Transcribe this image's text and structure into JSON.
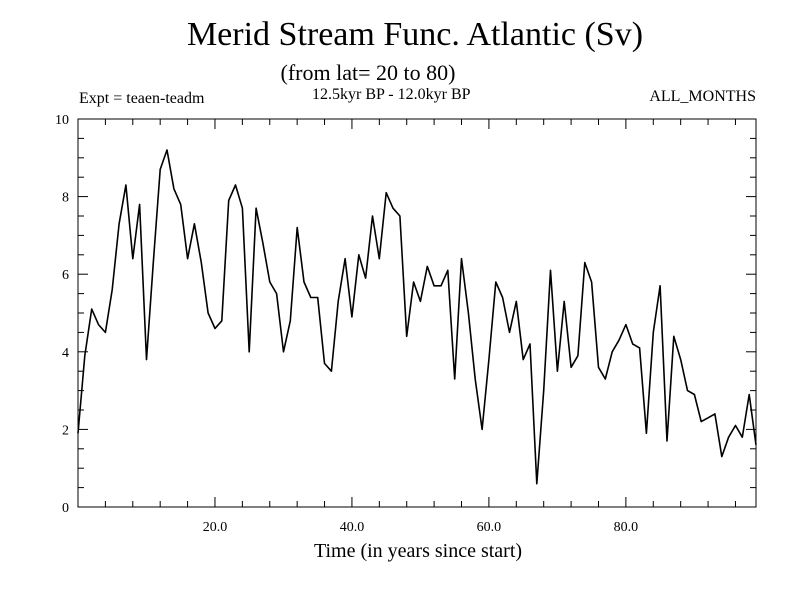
{
  "chart_data": {
    "type": "line",
    "title": "Merid Stream Func. Atlantic (Sv)",
    "subtitle": "(from lat= 20 to 80)",
    "experiment_label": "Expt = teaen-teadm",
    "period_label": "12.5kyr BP - 12.0kyr BP",
    "months_label": "ALL_MONTHS",
    "xlabel": "Time (in years since start)",
    "ylabel": "",
    "xlim": [
      0,
      99
    ],
    "ylim": [
      0,
      10
    ],
    "x_ticks": [
      20,
      40,
      60,
      80
    ],
    "x_tick_labels": [
      "20.0",
      "40.0",
      "60.0",
      "80.0"
    ],
    "y_ticks": [
      0,
      2,
      4,
      6,
      8,
      10
    ],
    "y_tick_labels": [
      "0",
      "2",
      "4",
      "6",
      "8",
      "10"
    ],
    "grid": false,
    "line_color": "#000000",
    "x": [
      0,
      1,
      2,
      3,
      4,
      5,
      6,
      7,
      8,
      9,
      10,
      11,
      12,
      13,
      14,
      15,
      16,
      17,
      18,
      19,
      20,
      21,
      22,
      23,
      24,
      25,
      26,
      27,
      28,
      29,
      30,
      31,
      32,
      33,
      34,
      35,
      36,
      37,
      38,
      39,
      40,
      41,
      42,
      43,
      44,
      45,
      46,
      47,
      48,
      49,
      50,
      51,
      52,
      53,
      54,
      55,
      56,
      57,
      58,
      59,
      60,
      61,
      62,
      63,
      64,
      65,
      66,
      67,
      68,
      69,
      70,
      71,
      72,
      73,
      74,
      75,
      76,
      77,
      78,
      79,
      80,
      81,
      82,
      83,
      84,
      85,
      86,
      87,
      88,
      89,
      90,
      91,
      92,
      93,
      94,
      95,
      96,
      97,
      98,
      99
    ],
    "y": [
      1.9,
      3.9,
      5.1,
      4.7,
      4.5,
      5.6,
      7.3,
      8.3,
      6.4,
      7.8,
      3.8,
      6.3,
      8.7,
      9.2,
      8.2,
      7.8,
      6.4,
      7.3,
      6.3,
      5.0,
      4.6,
      4.8,
      7.9,
      8.3,
      7.7,
      4.0,
      7.7,
      6.8,
      5.8,
      5.5,
      4.0,
      4.8,
      7.2,
      5.8,
      5.4,
      5.4,
      3.7,
      3.5,
      5.3,
      6.4,
      4.9,
      6.5,
      5.9,
      7.5,
      6.4,
      8.1,
      7.7,
      7.5,
      4.4,
      5.8,
      5.3,
      6.2,
      5.7,
      5.7,
      6.1,
      3.3,
      6.4,
      5.0,
      3.3,
      2.0,
      3.8,
      5.8,
      5.4,
      4.5,
      5.3,
      3.8,
      4.2,
      0.6,
      3.0,
      6.1,
      3.5,
      5.3,
      3.6,
      3.9,
      6.3,
      5.8,
      3.6,
      3.3,
      4.0,
      4.3,
      4.7,
      4.2,
      4.1,
      1.9,
      4.5,
      5.7,
      1.7,
      4.4,
      3.8,
      3.0,
      2.9,
      2.2,
      2.3,
      2.4,
      1.3,
      1.8,
      2.1,
      1.8,
      2.9,
      1.6
    ]
  }
}
